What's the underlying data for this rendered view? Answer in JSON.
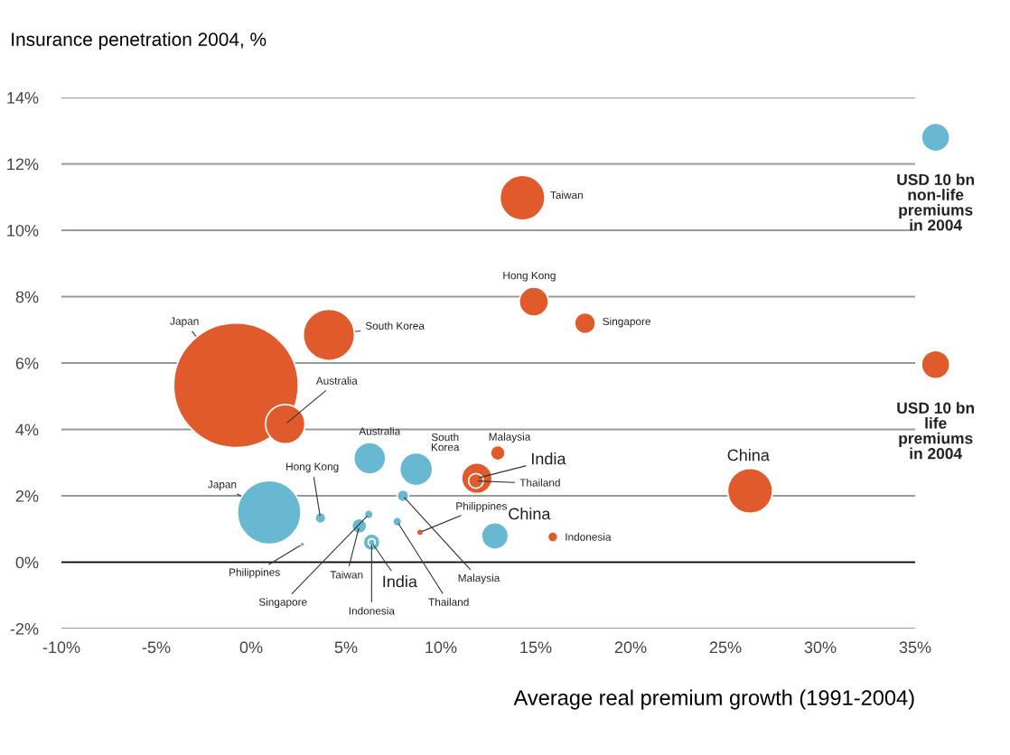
{
  "chart_data": {
    "type": "bubble",
    "ylabel": "Insurance penetration 2004, %",
    "xlabel": "Average real premium growth (1991-2004)",
    "xlim": [
      -10,
      35
    ],
    "xticks": [
      {
        "value": -10,
        "label": "-10%"
      },
      {
        "value": -5,
        "label": "-5%"
      },
      {
        "value": 0,
        "label": "0%"
      },
      {
        "value": 5,
        "label": "5%"
      },
      {
        "value": 10,
        "label": "10%"
      },
      {
        "value": 15,
        "label": "15%"
      },
      {
        "value": 20,
        "label": "20%"
      },
      {
        "value": 25,
        "label": "25%"
      },
      {
        "value": 30,
        "label": "30%"
      },
      {
        "value": 35,
        "label": "35%"
      }
    ],
    "ylim": [
      -2,
      14
    ],
    "yticks": [
      {
        "value": -2,
        "label": "-2%"
      },
      {
        "value": 0,
        "label": "0%"
      },
      {
        "value": 2,
        "label": "2%"
      },
      {
        "value": 4,
        "label": "4%"
      },
      {
        "value": 6,
        "label": "6%"
      },
      {
        "value": 8,
        "label": "8%"
      },
      {
        "value": 10,
        "label": "10%"
      },
      {
        "value": 12,
        "label": "12%"
      },
      {
        "value": 14,
        "label": "14%"
      }
    ],
    "grid": "y",
    "ref_lines": [
      {
        "axis": "y",
        "value": 0,
        "color": "#000000"
      }
    ],
    "series": [
      {
        "color": "#e05a2b",
        "x": [
          -0.8,
          4.1,
          1.8,
          14.3,
          14.9,
          17.6,
          13.0,
          11.9,
          11.85,
          26.3,
          15.9,
          8.9
        ],
        "values": [
          5.33,
          6.85,
          4.16,
          10.98,
          7.85,
          7.2,
          3.29,
          2.53,
          2.45,
          2.15,
          0.76,
          0.9
        ],
        "sizes": [
          1,
          0.17,
          0.1,
          0.13,
          0.055,
          0.028,
          0.014,
          0.06,
          0.014,
          0.13,
          0.0065,
          0.003
        ]
      },
      {
        "color": "#67b8d0",
        "x": [
          0.95,
          2.7,
          3.65,
          6.2,
          5.7,
          6.35,
          6.35,
          6.25,
          8.7,
          8.0,
          7.7,
          12.85
        ],
        "values": [
          1.5,
          0.54,
          1.33,
          1.44,
          1.09,
          0.6,
          0.6,
          3.13,
          2.8,
          2.0,
          1.22,
          0.79
        ],
        "sizes": [
          0.26,
          0.0014,
          0.0074,
          0.005,
          0.014,
          0.018,
          0.0032,
          0.065,
          0.069,
          0.0088,
          0.005,
          0.046
        ]
      }
    ],
    "annotations": [
      {
        "text": "Japan",
        "x": -0.8,
        "y": 5.33
      },
      {
        "text": "South Korea",
        "x": 4.1,
        "y": 6.85
      },
      {
        "text": "Australia",
        "x": 1.8,
        "y": 4.16
      },
      {
        "text": "Taiwan",
        "x": 14.3,
        "y": 10.98
      },
      {
        "text": "Hong Kong",
        "x": 14.9,
        "y": 7.85
      },
      {
        "text": "Singapore",
        "x": 17.6,
        "y": 7.2
      },
      {
        "text": "Malaysia",
        "x": 13.0,
        "y": 3.29
      },
      {
        "text": "India",
        "x": 11.9,
        "y": 2.53
      },
      {
        "text": "Thailand",
        "x": 11.85,
        "y": 2.45
      },
      {
        "text": "China",
        "x": 26.3,
        "y": 2.15
      },
      {
        "text": "Indonesia",
        "x": 15.9,
        "y": 0.76
      },
      {
        "text": "Philippines",
        "x": 8.9,
        "y": 0.9
      },
      {
        "text": "Japan",
        "x": 0.95,
        "y": 1.5
      },
      {
        "text": "Philippines",
        "x": 2.7,
        "y": 0.54
      },
      {
        "text": "Hong Kong",
        "x": 3.65,
        "y": 1.33
      },
      {
        "text": "Singapore",
        "x": 6.2,
        "y": 1.44
      },
      {
        "text": "Taiwan",
        "x": 5.7,
        "y": 1.09
      },
      {
        "text": "India",
        "x": 6.35,
        "y": 0.6
      },
      {
        "text": "Indonesia",
        "x": 6.35,
        "y": 0.6
      },
      {
        "text": "Australia",
        "x": 6.25,
        "y": 3.13
      },
      {
        "text": "South\nKorea",
        "x": 8.7,
        "y": 2.8
      },
      {
        "text": "Malaysia",
        "x": 8.0,
        "y": 2.0
      },
      {
        "text": "Thailand",
        "x": 7.7,
        "y": 1.22
      },
      {
        "text": "China",
        "x": 12.85,
        "y": 0.79
      },
      "USD 10 bn\nnon-life\npremiums\nin 2004",
      "USD 10 bn\nlife\npremiums\nin 2004"
    ]
  }
}
